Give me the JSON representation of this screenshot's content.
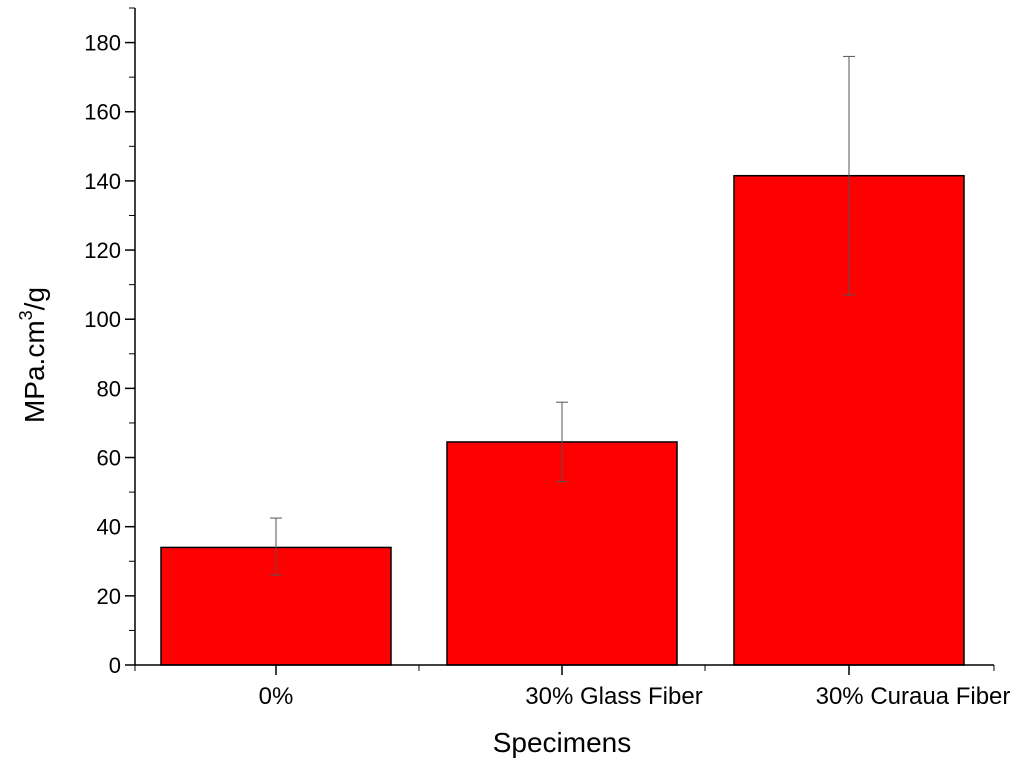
{
  "chart_data": {
    "type": "bar",
    "xlabel": "Specimens",
    "ylabel_main": "MPa.cm",
    "ylabel_sup": "3",
    "ylabel_tail": "/g",
    "categories": [
      "0%",
      "30% Glass Fiber",
      "30% Curaua Fiber"
    ],
    "values": [
      34,
      64.5,
      141.5
    ],
    "error_upper": [
      42.5,
      76,
      176
    ],
    "error_lower": [
      26,
      53,
      107
    ],
    "ylim": [
      0,
      190
    ],
    "yticks": [
      0,
      20,
      40,
      60,
      80,
      100,
      120,
      140,
      160,
      180
    ],
    "bar_color": "#ff0000",
    "grid": false
  }
}
